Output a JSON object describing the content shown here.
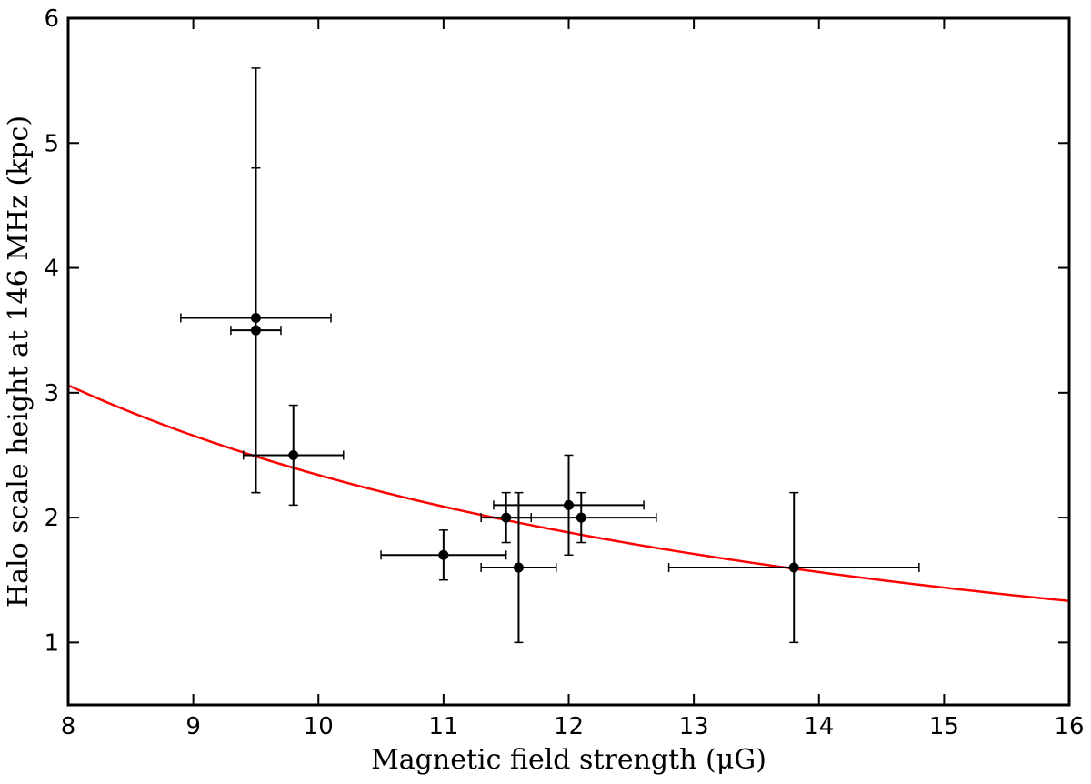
{
  "chart_data": {
    "type": "scatter",
    "title": "",
    "xlabel": "Magnetic field strength (μG)",
    "ylabel": "Halo scale height at 146 MHz (kpc)",
    "xlim": [
      8,
      16
    ],
    "ylim": [
      0.5,
      6
    ],
    "xticks": [
      8,
      9,
      10,
      11,
      12,
      13,
      14,
      15,
      16
    ],
    "yticks": [
      1,
      2,
      3,
      4,
      5,
      6
    ],
    "grid": false,
    "points": [
      {
        "x": 9.5,
        "y": 3.6,
        "xerr": [
          0.6,
          0.6
        ],
        "yerr": [
          1.4,
          2.0
        ]
      },
      {
        "x": 9.5,
        "y": 3.5,
        "xerr": [
          0.2,
          0.2
        ],
        "yerr": [
          1.3,
          1.3
        ]
      },
      {
        "x": 9.8,
        "y": 2.5,
        "xerr": [
          0.4,
          0.4
        ],
        "yerr": [
          0.4,
          0.4
        ]
      },
      {
        "x": 11.0,
        "y": 1.7,
        "xerr": [
          0.5,
          0.5
        ],
        "yerr": [
          0.2,
          0.2
        ]
      },
      {
        "x": 11.5,
        "y": 2.0,
        "xerr": [
          0.2,
          0.2
        ],
        "yerr": [
          0.2,
          0.2
        ]
      },
      {
        "x": 11.6,
        "y": 1.6,
        "xerr": [
          0.3,
          0.3
        ],
        "yerr": [
          0.6,
          0.6
        ]
      },
      {
        "x": 12.0,
        "y": 2.1,
        "xerr": [
          0.6,
          0.6
        ],
        "yerr": [
          0.4,
          0.4
        ]
      },
      {
        "x": 12.1,
        "y": 2.0,
        "xerr": [
          0.6,
          0.6
        ],
        "yerr": [
          0.2,
          0.2
        ]
      },
      {
        "x": 13.8,
        "y": 1.6,
        "xerr": [
          1.0,
          1.0
        ],
        "yerr": [
          0.6,
          0.6
        ]
      }
    ],
    "fit": {
      "type": "power-law",
      "amplitude": 3.06,
      "x0": 8,
      "exponent": -1.2,
      "color": "#ff0000"
    },
    "marker_color": "#000000"
  }
}
